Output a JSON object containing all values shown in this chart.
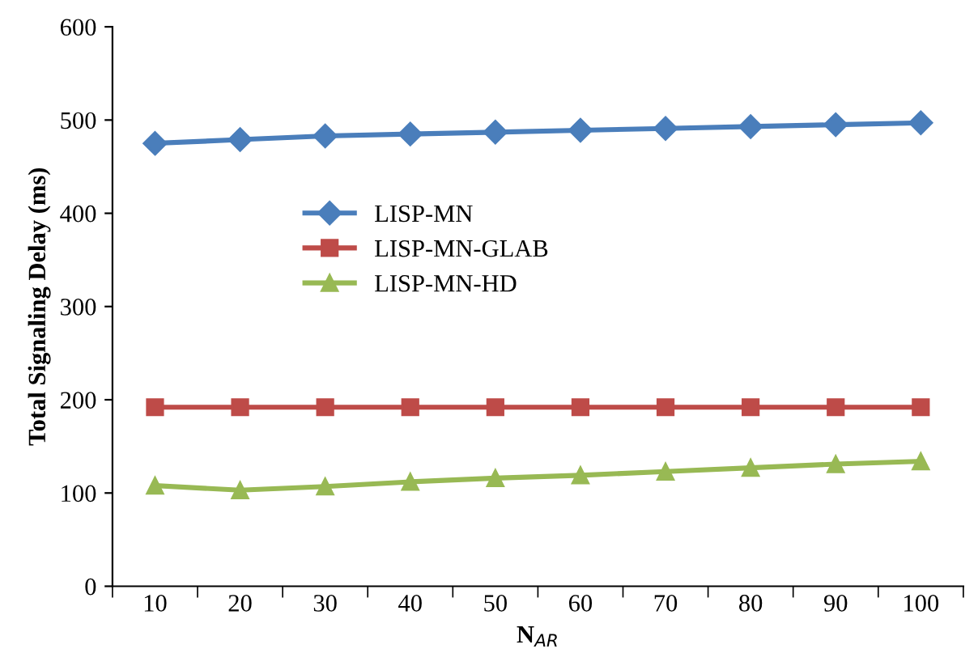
{
  "chart_data": {
    "type": "line",
    "xlabel": "N$_{AR}$",
    "ylabel": "Total Signaling Delay (ms)",
    "categories": [
      "10",
      "20",
      "30",
      "40",
      "50",
      "60",
      "70",
      "80",
      "90",
      "100"
    ],
    "series": [
      {
        "name": "LISP-MN",
        "color": "#4a7ebb",
        "marker": "diamond",
        "values": [
          475,
          479,
          483,
          485,
          487,
          489,
          491,
          493,
          495,
          497
        ]
      },
      {
        "name": "LISP-MN-GLAB",
        "color": "#be4b48",
        "marker": "square",
        "values": [
          192,
          192,
          192,
          192,
          192,
          192,
          192,
          192,
          192,
          192
        ]
      },
      {
        "name": "LISP-MN-HD",
        "color": "#98b954",
        "marker": "triangle",
        "values": [
          108,
          103,
          107,
          112,
          116,
          119,
          123,
          127,
          131,
          134
        ]
      }
    ],
    "ylim": [
      0,
      600
    ],
    "yticks": [
      0,
      100,
      200,
      300,
      400,
      500,
      600
    ],
    "grid": false,
    "legend": "center left",
    "line_style": "solid"
  }
}
